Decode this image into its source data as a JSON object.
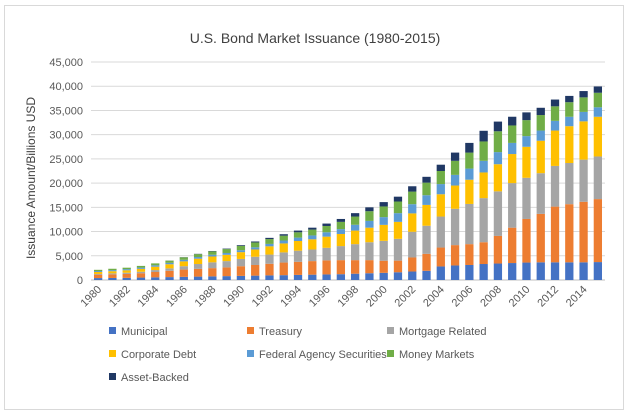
{
  "chart_data": {
    "type": "bar",
    "stacked": true,
    "title": "U.S. Bond Market Issuance (1980-2015)",
    "ylabel": "Issuance Amount/Billions USD",
    "xlabel": "",
    "ylim": [
      0,
      45000
    ],
    "yticks": [
      0,
      5000,
      10000,
      15000,
      20000,
      25000,
      30000,
      35000,
      40000,
      45000
    ],
    "ytick_labels": [
      "0",
      "5,000",
      "10,000",
      "15,000",
      "20,000",
      "25,000",
      "30,000",
      "35,000",
      "40,000",
      "45,000"
    ],
    "xtick_labels": [
      "1980",
      "1982",
      "1984",
      "1986",
      "1988",
      "1990",
      "1992",
      "1994",
      "1996",
      "1998",
      "2000",
      "2002",
      "2004",
      "2006",
      "2008",
      "2010",
      "2012",
      "2014"
    ],
    "grid": "horizontal",
    "legend_position": "bottom",
    "categories": [
      "1980",
      "1981",
      "1982",
      "1983",
      "1984",
      "1985",
      "1986",
      "1987",
      "1988",
      "1989",
      "1990",
      "1991",
      "1992",
      "1993",
      "1994",
      "1995",
      "1996",
      "1997",
      "1998",
      "1999",
      "2000",
      "2001",
      "2002",
      "2003",
      "2004",
      "2005",
      "2006",
      "2007",
      "2008",
      "2009",
      "2010",
      "2011",
      "2012",
      "2013",
      "2014",
      "2015"
    ],
    "series": [
      {
        "name": "Municipal",
        "color": "#4472c4",
        "values": [
          400,
          420,
          450,
          500,
          550,
          600,
          650,
          700,
          750,
          800,
          850,
          900,
          950,
          1000,
          1050,
          1100,
          1150,
          1200,
          1300,
          1400,
          1480,
          1600,
          1750,
          1900,
          2800,
          3000,
          3100,
          3300,
          3400,
          3500,
          3600,
          3650,
          3650,
          3650,
          3650,
          3700
        ]
      },
      {
        "name": "Treasury",
        "color": "#ed7d31",
        "values": [
          700,
          750,
          800,
          900,
          1100,
          1300,
          1500,
          1600,
          1700,
          1800,
          2000,
          2200,
          2400,
          2600,
          2700,
          2800,
          2900,
          2900,
          2800,
          2700,
          2500,
          2400,
          2900,
          3500,
          3900,
          4200,
          4300,
          4500,
          5700,
          7300,
          9000,
          10000,
          11500,
          12000,
          12500,
          13000
        ]
      },
      {
        "name": "Mortgage Related",
        "color": "#a5a5a5",
        "values": [
          150,
          200,
          250,
          300,
          400,
          500,
          700,
          1000,
          1200,
          1300,
          1500,
          1700,
          1900,
          2100,
          2300,
          2400,
          2600,
          2900,
          3300,
          3700,
          4100,
          4500,
          5300,
          5800,
          6400,
          7500,
          8300,
          9100,
          9200,
          9200,
          8500,
          8400,
          8400,
          8500,
          8700,
          8800
        ]
      },
      {
        "name": "Corporate Debt",
        "color": "#ffc000",
        "values": [
          400,
          450,
          500,
          600,
          700,
          850,
          1000,
          1100,
          1200,
          1300,
          1400,
          1500,
          1700,
          1850,
          2000,
          2100,
          2300,
          2500,
          2800,
          3000,
          3300,
          3500,
          3800,
          4300,
          4600,
          4800,
          5000,
          5300,
          5600,
          6000,
          6400,
          6700,
          7300,
          7600,
          7900,
          8200
        ]
      },
      {
        "name": "Federal Agency Securities",
        "color": "#5b9bd5",
        "values": [
          200,
          220,
          240,
          260,
          280,
          300,
          320,
          340,
          360,
          380,
          400,
          450,
          500,
          600,
          700,
          800,
          900,
          1000,
          1200,
          1400,
          1600,
          1800,
          1900,
          2000,
          2100,
          2200,
          2300,
          2400,
          2500,
          2300,
          2200,
          2100,
          2000,
          1950,
          1950,
          1950
        ]
      },
      {
        "name": "Money Markets",
        "color": "#70ad47",
        "values": [
          250,
          280,
          300,
          350,
          400,
          450,
          500,
          600,
          700,
          800,
          900,
          1000,
          1000,
          1000,
          1100,
          1200,
          1300,
          1500,
          1700,
          2000,
          2200,
          2400,
          2600,
          2600,
          2700,
          2900,
          3300,
          4000,
          4300,
          3600,
          3300,
          3200,
          3000,
          3000,
          3000,
          3000
        ]
      },
      {
        "name": "Asset-Backed",
        "color": "#203864",
        "values": [
          0,
          0,
          0,
          0,
          0,
          20,
          40,
          60,
          80,
          100,
          150,
          200,
          250,
          300,
          350,
          400,
          500,
          600,
          700,
          800,
          900,
          1000,
          1100,
          1200,
          1300,
          1700,
          2000,
          2200,
          2000,
          1800,
          1600,
          1500,
          1400,
          1300,
          1300,
          1300
        ]
      }
    ]
  }
}
